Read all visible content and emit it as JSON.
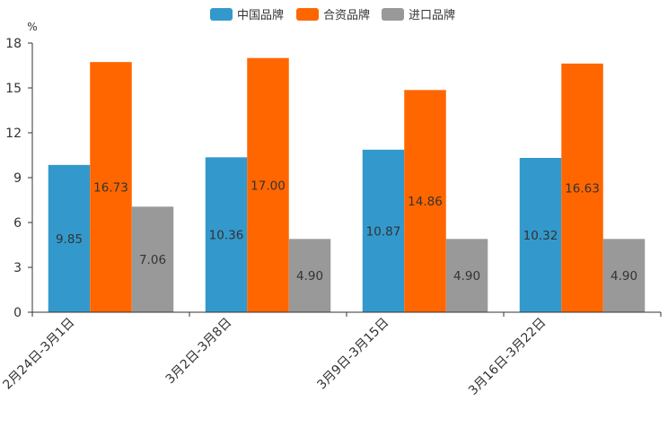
{
  "chart_data": {
    "type": "bar",
    "unit": "%",
    "categories": [
      "2月24日-3月1日",
      "3月2日-3月8日",
      "3月9日-3月15日",
      "3月16日-3月22日"
    ],
    "series": [
      {
        "name": "中国品牌",
        "color": "#3399cc",
        "values": [
          9.85,
          10.36,
          10.87,
          10.32
        ],
        "labels": [
          "9.85",
          "10.36",
          "10.87",
          "10.32"
        ]
      },
      {
        "name": "合资品牌",
        "color": "#ff6600",
        "values": [
          16.73,
          17.0,
          14.86,
          16.63
        ],
        "labels": [
          "16.73",
          "17.00",
          "14.86",
          "16.63"
        ]
      },
      {
        "name": "进口品牌",
        "color": "#999999",
        "values": [
          7.06,
          4.9,
          4.9,
          4.9
        ],
        "labels": [
          "7.06",
          "4.90",
          "4.90",
          "4.90"
        ]
      }
    ],
    "ylim": [
      0,
      18
    ],
    "yticks": [
      0,
      3,
      6,
      9,
      12,
      15,
      18
    ],
    "legend_position": "top-center",
    "grid": false
  }
}
